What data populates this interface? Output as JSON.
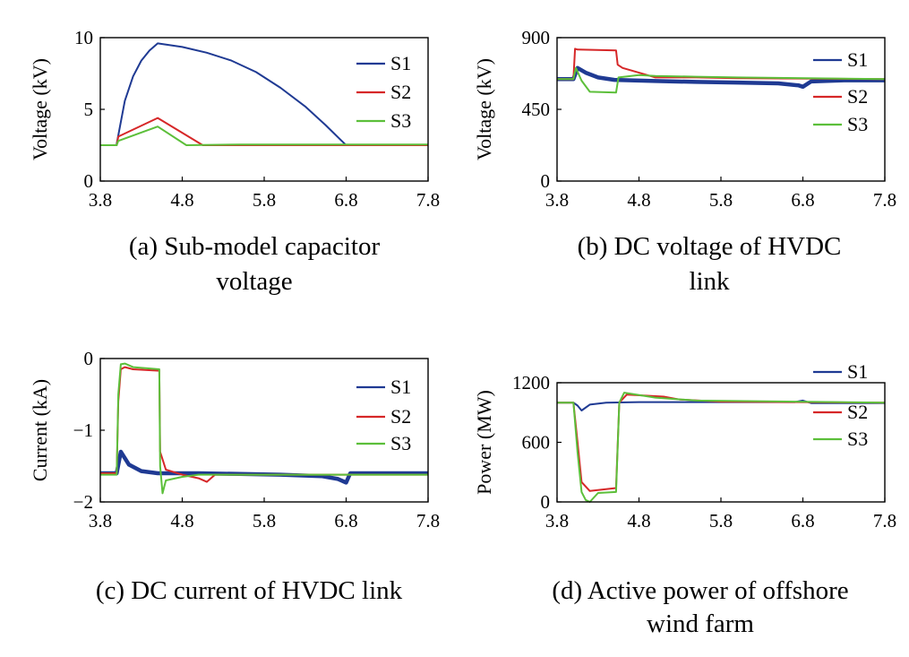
{
  "chart_data": [
    {
      "type": "line",
      "caption": [
        "(a) Sub-model capacitor",
        "voltage"
      ],
      "xlabel": "",
      "ylabel": "Voltage (kV)",
      "xlim": [
        3.8,
        7.8
      ],
      "ylim": [
        0,
        10
      ],
      "xticks": [
        3.8,
        4.8,
        5.8,
        6.8,
        7.8
      ],
      "yticks": [
        0,
        5,
        10
      ],
      "legend_position": "right",
      "series": [
        {
          "name": "S1",
          "color": "#1f3a93",
          "thick": false,
          "x": [
            3.8,
            4.0,
            4.0,
            4.1,
            4.2,
            4.3,
            4.4,
            4.5,
            4.8,
            5.1,
            5.4,
            5.7,
            6.0,
            6.3,
            6.55,
            6.8,
            7.3,
            7.8
          ],
          "y": [
            2.5,
            2.5,
            2.6,
            5.6,
            7.3,
            8.4,
            9.1,
            9.6,
            9.35,
            8.95,
            8.4,
            7.6,
            6.5,
            5.2,
            3.9,
            2.5,
            2.5,
            2.5
          ]
        },
        {
          "name": "S2",
          "color": "#d62728",
          "thick": false,
          "x": [
            3.8,
            4.0,
            4.02,
            4.5,
            5.05,
            5.5,
            7.8
          ],
          "y": [
            2.5,
            2.5,
            3.1,
            4.4,
            2.5,
            2.5,
            2.5
          ]
        },
        {
          "name": "S3",
          "color": "#5cbf3a",
          "thick": false,
          "x": [
            3.8,
            4.0,
            4.02,
            4.5,
            4.85,
            5.5,
            7.8
          ],
          "y": [
            2.5,
            2.5,
            2.8,
            3.8,
            2.5,
            2.55,
            2.55
          ]
        }
      ]
    },
    {
      "type": "line",
      "caption": [
        "(b) DC voltage of HVDC",
        "link"
      ],
      "xlabel": "",
      "ylabel": "Voltage (kV)",
      "xlim": [
        3.8,
        7.8
      ],
      "ylim": [
        0,
        900
      ],
      "xticks": [
        3.8,
        4.8,
        5.8,
        6.8,
        7.8
      ],
      "yticks": [
        0,
        450,
        900
      ],
      "legend_position": "right",
      "series": [
        {
          "name": "S1",
          "color": "#1f3a93",
          "thick": true,
          "x": [
            3.8,
            4.0,
            4.05,
            4.15,
            4.3,
            4.5,
            5.0,
            5.5,
            6.0,
            6.5,
            6.75,
            6.8,
            6.9,
            7.3,
            7.8
          ],
          "y": [
            640,
            640,
            710,
            680,
            650,
            635,
            628,
            622,
            618,
            613,
            600,
            592,
            625,
            632,
            632
          ]
        },
        {
          "name": "S2",
          "color": "#d62728",
          "thick": false,
          "x": [
            3.8,
            4.0,
            4.02,
            4.05,
            4.52,
            4.54,
            4.6,
            4.8,
            5.0,
            5.5,
            6.0,
            7.8
          ],
          "y": [
            640,
            640,
            830,
            825,
            820,
            730,
            710,
            680,
            650,
            650,
            645,
            640
          ]
        },
        {
          "name": "S3",
          "color": "#5cbf3a",
          "thick": false,
          "x": [
            3.8,
            4.0,
            4.03,
            4.1,
            4.2,
            4.52,
            4.55,
            4.8,
            5.0,
            5.5,
            6.0,
            7.8
          ],
          "y": [
            640,
            640,
            710,
            630,
            560,
            555,
            650,
            665,
            660,
            655,
            650,
            640
          ]
        }
      ]
    },
    {
      "type": "line",
      "caption": [
        "(c) DC current of HVDC link"
      ],
      "xlabel": "",
      "ylabel": "Current (kA)",
      "xlim": [
        3.8,
        7.8
      ],
      "ylim": [
        -2,
        0
      ],
      "xticks": [
        3.8,
        4.8,
        5.8,
        6.8,
        7.8
      ],
      "yticks": [
        -2,
        -1,
        0
      ],
      "legend_position": "right",
      "series": [
        {
          "name": "S1",
          "color": "#1f3a93",
          "thick": true,
          "x": [
            3.8,
            4.0,
            4.05,
            4.15,
            4.3,
            4.5,
            5.0,
            5.5,
            6.0,
            6.5,
            6.7,
            6.8,
            6.85,
            7.0,
            7.8
          ],
          "y": [
            -1.6,
            -1.6,
            -1.3,
            -1.48,
            -1.57,
            -1.6,
            -1.6,
            -1.61,
            -1.62,
            -1.64,
            -1.68,
            -1.73,
            -1.6,
            -1.6,
            -1.6
          ]
        },
        {
          "name": "S2",
          "color": "#d62728",
          "thick": false,
          "x": [
            3.8,
            4.0,
            4.02,
            4.05,
            4.1,
            4.2,
            4.52,
            4.53,
            4.6,
            4.8,
            5.0,
            5.1,
            5.2,
            7.8
          ],
          "y": [
            -1.6,
            -1.6,
            -0.6,
            -0.15,
            -0.12,
            -0.15,
            -0.17,
            -1.3,
            -1.55,
            -1.62,
            -1.67,
            -1.72,
            -1.62,
            -1.62
          ]
        },
        {
          "name": "S3",
          "color": "#5cbf3a",
          "thick": false,
          "x": [
            3.8,
            4.0,
            4.02,
            4.05,
            4.1,
            4.2,
            4.52,
            4.53,
            4.56,
            4.6,
            4.8,
            5.0,
            5.5,
            7.8
          ],
          "y": [
            -1.62,
            -1.62,
            -0.5,
            -0.08,
            -0.07,
            -0.12,
            -0.15,
            -1.5,
            -1.88,
            -1.7,
            -1.65,
            -1.62,
            -1.62,
            -1.62
          ]
        }
      ]
    },
    {
      "type": "line",
      "caption": [
        "(d) Active power of offshore",
        "wind farm"
      ],
      "xlabel": "",
      "ylabel": "Power (MW)",
      "xlim": [
        3.8,
        7.8
      ],
      "ylim": [
        0,
        1200
      ],
      "xticks": [
        3.8,
        4.8,
        5.8,
        6.8,
        7.8
      ],
      "yticks": [
        0,
        600,
        1200
      ],
      "legend_position": "right",
      "series": [
        {
          "name": "S1",
          "color": "#1f3a93",
          "thick": false,
          "x": [
            3.8,
            4.0,
            4.05,
            4.1,
            4.2,
            4.4,
            4.8,
            5.8,
            6.7,
            6.8,
            6.9,
            7.8
          ],
          "y": [
            1000,
            1000,
            970,
            920,
            980,
            1000,
            1005,
            1005,
            1005,
            1020,
            995,
            995
          ]
        },
        {
          "name": "S2",
          "color": "#d62728",
          "thick": false,
          "x": [
            3.8,
            4.0,
            4.05,
            4.1,
            4.2,
            4.52,
            4.56,
            4.65,
            5.1,
            5.3,
            5.8,
            7.8
          ],
          "y": [
            1000,
            1000,
            600,
            200,
            110,
            140,
            1000,
            1080,
            1060,
            1030,
            1010,
            1000
          ]
        },
        {
          "name": "S3",
          "color": "#5cbf3a",
          "thick": false,
          "x": [
            3.8,
            4.0,
            4.05,
            4.1,
            4.15,
            4.2,
            4.3,
            4.52,
            4.56,
            4.62,
            5.0,
            5.5,
            7.8
          ],
          "y": [
            1000,
            1000,
            500,
            100,
            20,
            0,
            90,
            100,
            1000,
            1100,
            1050,
            1020,
            1000
          ]
        }
      ]
    }
  ]
}
